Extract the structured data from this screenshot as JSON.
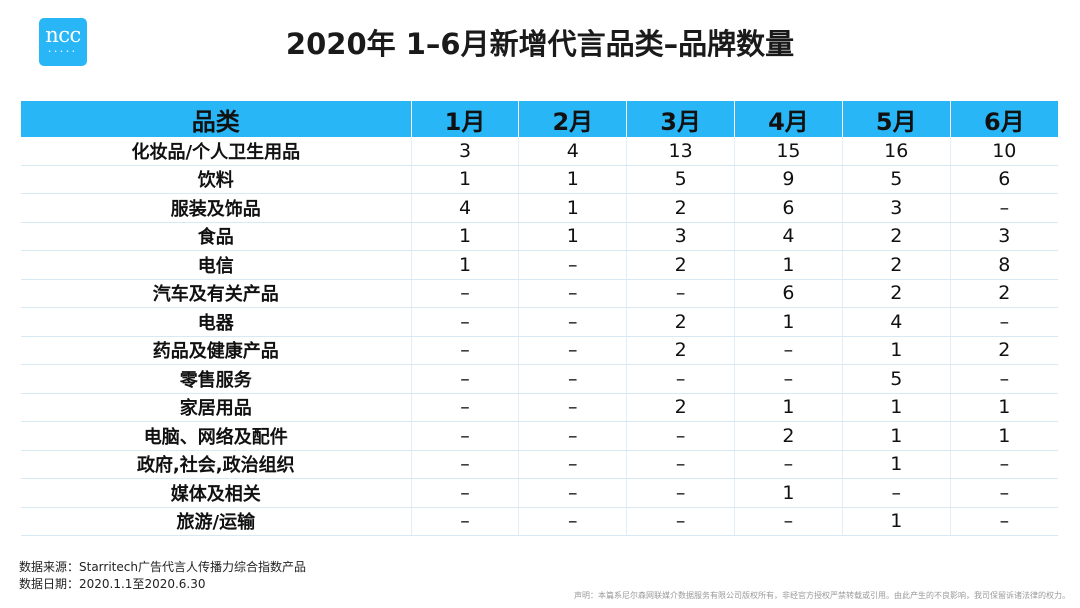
{
  "logo": {
    "text": "ncc",
    "dots": "•••••"
  },
  "title": "2020年 1–6月新增代言品类–品牌数量",
  "table": {
    "headers": [
      "品类",
      "1月",
      "2月",
      "3月",
      "4月",
      "5月",
      "6月"
    ],
    "rows": [
      [
        "化妆品/个人卫生用品",
        "3",
        "4",
        "13",
        "15",
        "16",
        "10"
      ],
      [
        "饮料",
        "1",
        "1",
        "5",
        "9",
        "5",
        "6"
      ],
      [
        "服装及饰品",
        "4",
        "1",
        "2",
        "6",
        "3",
        "–"
      ],
      [
        "食品",
        "1",
        "1",
        "3",
        "4",
        "2",
        "3"
      ],
      [
        "电信",
        "1",
        "–",
        "2",
        "1",
        "2",
        "8"
      ],
      [
        "汽车及有关产品",
        "–",
        "–",
        "–",
        "6",
        "2",
        "2"
      ],
      [
        "电器",
        "–",
        "–",
        "2",
        "1",
        "4",
        "–"
      ],
      [
        "药品及健康产品",
        "–",
        "–",
        "2",
        "–",
        "1",
        "2"
      ],
      [
        "零售服务",
        "–",
        "–",
        "–",
        "–",
        "5",
        "–"
      ],
      [
        "家居用品",
        "–",
        "–",
        "2",
        "1",
        "1",
        "1"
      ],
      [
        "电脑、网络及配件",
        "–",
        "–",
        "–",
        "2",
        "1",
        "1"
      ],
      [
        "政府,社会,政治组织",
        "–",
        "–",
        "–",
        "–",
        "1",
        "–"
      ],
      [
        "媒体及相关",
        "–",
        "–",
        "–",
        "1",
        "–",
        "–"
      ],
      [
        "旅游/运输",
        "–",
        "–",
        "–",
        "–",
        "1",
        "–"
      ]
    ]
  },
  "footer": {
    "source": "数据来源：Starritech广告代言人传播力综合指数产品",
    "date": "数据日期：2020.1.1至2020.6.30",
    "disclaimer": "声明：本篇系尼尔森网联媒介数据服务有限公司版权所有，非经官方授权严禁转载或引用。由此产生的不良影响，我司保留诉诸法律的权力。"
  },
  "colors": {
    "header_bg": "#29b6f6",
    "logo_bg": "#29b6f6",
    "row_divider": "#d7eaf4"
  }
}
